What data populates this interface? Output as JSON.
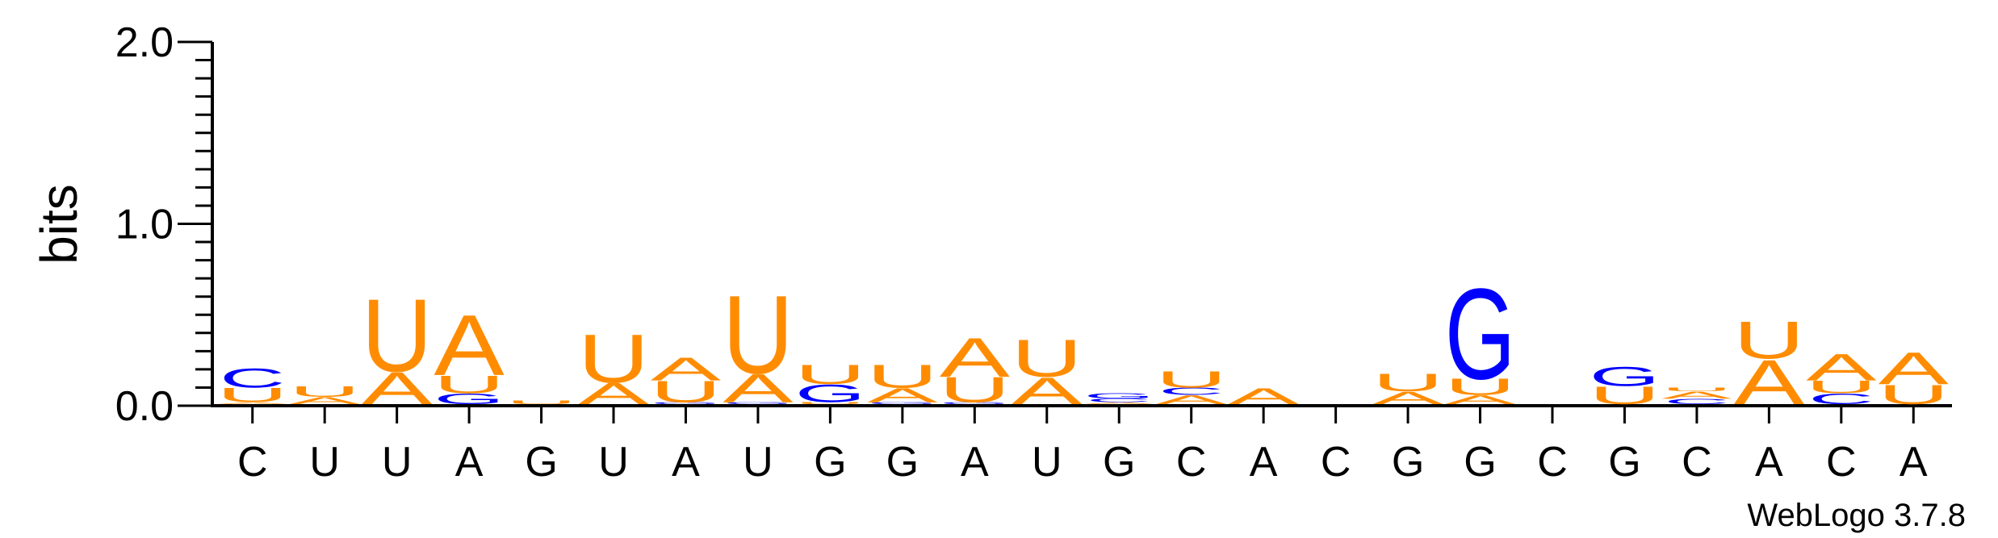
{
  "chart_data": {
    "type": "sequence-logo",
    "ylabel": "bits",
    "ylim": [
      0,
      2
    ],
    "yticks": [
      "0.0",
      "1.0",
      "2.0"
    ],
    "xticklabels": [
      "C",
      "U",
      "U",
      "A",
      "G",
      "U",
      "A",
      "U",
      "G",
      "G",
      "A",
      "U",
      "G",
      "C",
      "A",
      "C",
      "G",
      "G",
      "C",
      "G",
      "C",
      "A",
      "C",
      "A"
    ],
    "credit": "WebLogo 3.7.8",
    "colors": {
      "A": "#ff8c00",
      "U": "#ff8c00",
      "G": "#0000ff",
      "C": "#0000ff"
    },
    "columns": [
      [
        [
          "A",
          0.01
        ],
        [
          "U",
          0.08
        ],
        [
          "C",
          0.11
        ]
      ],
      [
        [
          "A",
          0.04
        ],
        [
          "U",
          0.06
        ]
      ],
      [
        [
          "A",
          0.18
        ],
        [
          "U",
          0.41
        ]
      ],
      [
        [
          "G",
          0.06
        ],
        [
          "U",
          0.1
        ],
        [
          "A",
          0.34
        ]
      ],
      [
        [
          "U",
          0.02
        ]
      ],
      [
        [
          "A",
          0.12
        ],
        [
          "U",
          0.27
        ]
      ],
      [
        [
          "G",
          0.01
        ],
        [
          "U",
          0.12
        ],
        [
          "A",
          0.13
        ]
      ],
      [
        [
          "G",
          0.01
        ],
        [
          "A",
          0.16
        ],
        [
          "U",
          0.44
        ]
      ],
      [
        [
          "U",
          0.01
        ],
        [
          "G",
          0.1
        ],
        [
          "U",
          0.11
        ]
      ],
      [
        [
          "G",
          0.01
        ],
        [
          "A",
          0.08
        ],
        [
          "U",
          0.13
        ]
      ],
      [
        [
          "G",
          0.01
        ],
        [
          "U",
          0.14
        ],
        [
          "A",
          0.22
        ]
      ],
      [
        [
          "A",
          0.15
        ],
        [
          "U",
          0.21
        ]
      ],
      [
        [
          "A",
          0.01
        ],
        [
          "C",
          0.02
        ],
        [
          "G",
          0.03
        ]
      ],
      [
        [
          "A",
          0.05
        ],
        [
          "C",
          0.04
        ],
        [
          "U",
          0.09
        ]
      ],
      [
        [
          "A",
          0.09
        ]
      ],
      [],
      [
        [
          "A",
          0.07
        ],
        [
          "U",
          0.1
        ]
      ],
      [
        [
          "A",
          0.05
        ],
        [
          "U",
          0.09
        ],
        [
          "G",
          0.51
        ]
      ],
      [],
      [
        [
          "U",
          0.1
        ],
        [
          "G",
          0.11
        ]
      ],
      [
        [
          "C",
          0.03
        ],
        [
          "A",
          0.04
        ],
        [
          "U",
          0.02
        ]
      ],
      [
        [
          "A",
          0.25
        ],
        [
          "U",
          0.21
        ]
      ],
      [
        [
          "C",
          0.06
        ],
        [
          "U",
          0.07
        ],
        [
          "A",
          0.15
        ]
      ],
      [
        [
          "U",
          0.11
        ],
        [
          "A",
          0.18
        ]
      ]
    ]
  }
}
